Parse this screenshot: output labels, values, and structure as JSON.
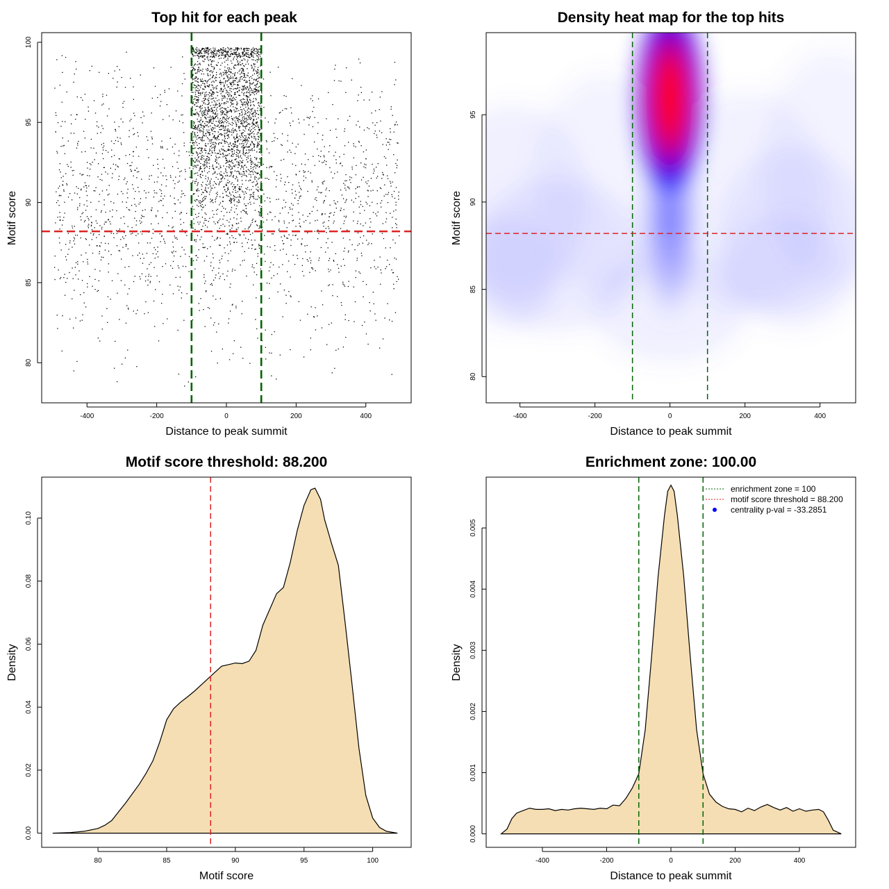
{
  "colors": {
    "green_line": "#006400",
    "red_line": "#dd2222",
    "density_fill": "#f5deb3",
    "heat_low": "#ffffff",
    "heat_mid": "#0000ff",
    "heat_high": "#ff0000",
    "point": "#000000"
  },
  "chart_data": [
    {
      "type": "scatter",
      "title": "Top hit for each peak",
      "xlabel": "Distance to peak summit",
      "ylabel": "Motif score",
      "xlim": [
        -530,
        530
      ],
      "ylim": [
        77.5,
        100.6
      ],
      "xticks": [
        -400,
        -200,
        0,
        200,
        400
      ],
      "xtick_labels": [
        "-400",
        "-200",
        "0",
        "200",
        "400"
      ],
      "yticks": [
        80,
        85,
        90,
        95,
        100
      ],
      "ytick_labels": [
        "80",
        "85",
        "90",
        "95",
        "100"
      ],
      "vlines": [
        -100,
        100
      ],
      "hline": 88.2,
      "point_groups": [
        {
          "name": "central",
          "x_range": [
            -100,
            100
          ],
          "y_range": [
            80,
            99.7
          ],
          "count": 2400,
          "mode": 95.5
        },
        {
          "name": "background",
          "x_range": [
            -495,
            495
          ],
          "y_range": [
            78.5,
            99.5
          ],
          "count": 1900
        }
      ]
    },
    {
      "type": "heatmap",
      "title": "Density heat map for the top hits",
      "xlabel": "Distance to peak summit",
      "ylabel": "Motif score",
      "xlim": [
        -490,
        495
      ],
      "ylim": [
        78.5,
        99.7
      ],
      "xticks": [
        -400,
        -200,
        0,
        200,
        400
      ],
      "xtick_labels": [
        "-400",
        "-200",
        "0",
        "200",
        "400"
      ],
      "yticks": [
        80,
        85,
        90,
        95
      ],
      "ytick_labels": [
        "80",
        "85",
        "90",
        "95"
      ],
      "vlines": [
        -100,
        100
      ],
      "hline": 88.2,
      "peak": {
        "x": 0,
        "y": 96.2
      }
    },
    {
      "type": "area",
      "title": "Motif score threshold: 88.200",
      "xlabel": "Motif score",
      "ylabel": "Density",
      "xlim": [
        75.9,
        102.8
      ],
      "ylim": [
        -0.0045,
        0.113
      ],
      "xticks": [
        80,
        85,
        90,
        95,
        100
      ],
      "xtick_labels": [
        "80",
        "85",
        "90",
        "95",
        "100"
      ],
      "yticks": [
        0,
        0.02,
        0.04,
        0.06,
        0.08,
        0.1
      ],
      "ytick_labels": [
        "0.00",
        "0.02",
        "0.04",
        "0.06",
        "0.08",
        "0.10"
      ],
      "vline": 88.2,
      "x": [
        76.7,
        78,
        79,
        80,
        80.5,
        81,
        81.5,
        82,
        82.5,
        83,
        83.5,
        84,
        84.5,
        85,
        85.5,
        86,
        86.5,
        87,
        87.5,
        88,
        88.5,
        89,
        89.5,
        90,
        90.5,
        91,
        91.5,
        92,
        92.5,
        93,
        93.5,
        94,
        94.5,
        95,
        95.5,
        95.8,
        96.2,
        96.5,
        97,
        97.5,
        98,
        98.5,
        99,
        99.5,
        100,
        100.5,
        101,
        101.8
      ],
      "y": [
        0,
        0.0002,
        0.0006,
        0.0015,
        0.0025,
        0.004,
        0.0068,
        0.0095,
        0.0125,
        0.0155,
        0.019,
        0.023,
        0.029,
        0.036,
        0.0395,
        0.0415,
        0.0432,
        0.045,
        0.047,
        0.049,
        0.051,
        0.053,
        0.0535,
        0.054,
        0.0538,
        0.0546,
        0.058,
        0.066,
        0.071,
        0.076,
        0.078,
        0.086,
        0.096,
        0.104,
        0.109,
        0.1095,
        0.106,
        0.0995,
        0.092,
        0.085,
        0.0665,
        0.047,
        0.027,
        0.012,
        0.0048,
        0.0018,
        0.0006,
        0
      ]
    },
    {
      "type": "area",
      "title": "Enrichment zone: 100.00",
      "xlabel": "Distance to peak summit",
      "ylabel": "Density",
      "xlim": [
        -575,
        575
      ],
      "ylim": [
        -0.00022,
        0.00583
      ],
      "xticks": [
        -400,
        -200,
        0,
        200,
        400
      ],
      "xtick_labels": [
        "-400",
        "-200",
        "0",
        "200",
        "400"
      ],
      "yticks": [
        0,
        0.001,
        0.002,
        0.003,
        0.004,
        0.005
      ],
      "ytick_labels": [
        "0.000",
        "0.001",
        "0.002",
        "0.003",
        "0.004",
        "0.005"
      ],
      "vlines": [
        -100,
        100
      ],
      "x": [
        -528,
        -510,
        -495,
        -480,
        -460,
        -440,
        -420,
        -400,
        -380,
        -360,
        -340,
        -320,
        -300,
        -280,
        -260,
        -240,
        -220,
        -200,
        -180,
        -160,
        -140,
        -120,
        -100,
        -80,
        -60,
        -40,
        -20,
        -10,
        0,
        10,
        20,
        40,
        60,
        80,
        100,
        120,
        140,
        160,
        180,
        200,
        220,
        240,
        260,
        280,
        300,
        320,
        340,
        360,
        380,
        400,
        420,
        440,
        460,
        475,
        490,
        505,
        530
      ],
      "y": [
        0,
        8e-05,
        0.00025,
        0.00034,
        0.00038,
        0.00042,
        0.0004,
        0.0004,
        0.00041,
        0.00038,
        0.0004,
        0.00039,
        0.00041,
        0.00042,
        0.00041,
        0.0004,
        0.00042,
        0.00041,
        0.00047,
        0.00046,
        0.00058,
        0.00075,
        0.00098,
        0.0017,
        0.0029,
        0.0042,
        0.0052,
        0.0056,
        0.0057,
        0.0056,
        0.0052,
        0.0042,
        0.0029,
        0.0017,
        0.00098,
        0.00065,
        0.00052,
        0.00045,
        0.00041,
        0.0004,
        0.00036,
        0.00042,
        0.00038,
        0.00044,
        0.00048,
        0.00043,
        0.00039,
        0.00043,
        0.00037,
        0.00041,
        0.00037,
        0.00039,
        0.0004,
        0.00036,
        0.00022,
        6e-05,
        0
      ],
      "legend": [
        {
          "label": "enrichment zone = 100",
          "style": "green-dotted"
        },
        {
          "label": "motif score threshold = 88.200",
          "style": "red-dotted"
        },
        {
          "label": "centrality p-val = -33.2851",
          "style": "blue-point"
        }
      ]
    }
  ]
}
